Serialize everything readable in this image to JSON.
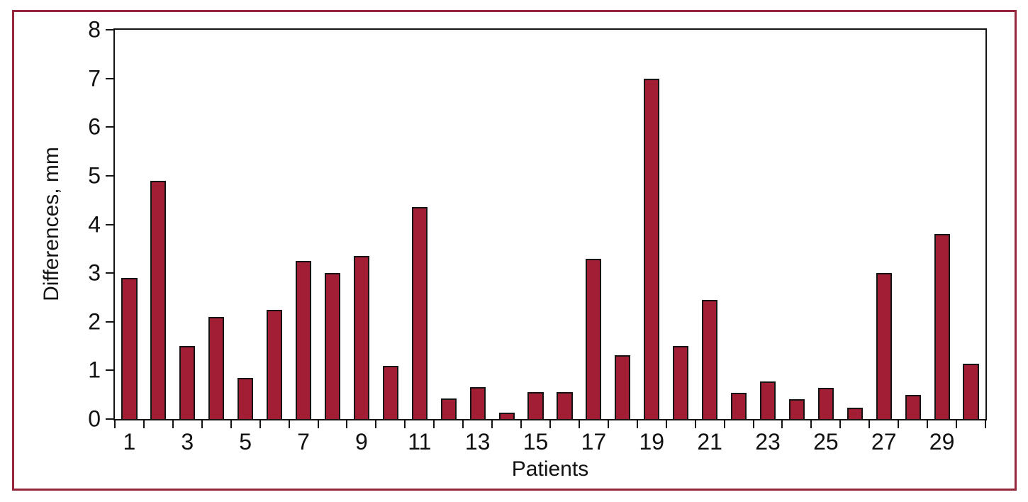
{
  "figure": {
    "border_color": "#96263C",
    "background_color": "#ffffff"
  },
  "chart_data": {
    "type": "bar",
    "title": "",
    "xlabel": "Patients",
    "ylabel": "Differences, mm",
    "categories": [
      1,
      2,
      3,
      4,
      5,
      6,
      7,
      8,
      9,
      10,
      11,
      12,
      13,
      14,
      15,
      16,
      17,
      18,
      19,
      20,
      21,
      22,
      23,
      24,
      25,
      26,
      27,
      28,
      29,
      30
    ],
    "values": [
      2.9,
      4.9,
      1.5,
      2.1,
      0.85,
      2.25,
      3.25,
      3.0,
      3.35,
      1.1,
      4.35,
      0.42,
      0.65,
      0.13,
      0.55,
      0.55,
      3.3,
      1.31,
      7.0,
      1.5,
      2.45,
      0.54,
      0.77,
      0.41,
      0.64,
      0.23,
      3.0,
      0.5,
      3.8,
      1.13
    ],
    "ylim": [
      0,
      8
    ],
    "yticks": [
      0,
      1,
      2,
      3,
      4,
      5,
      6,
      7,
      8
    ],
    "xtick_labels": [
      1,
      3,
      5,
      7,
      9,
      11,
      13,
      15,
      17,
      19,
      21,
      23,
      25,
      27,
      29
    ],
    "grid": "off",
    "legend": "none",
    "bar_color": "#A21E35",
    "bar_edge_color": "#141414",
    "axis_color": "#141414"
  }
}
